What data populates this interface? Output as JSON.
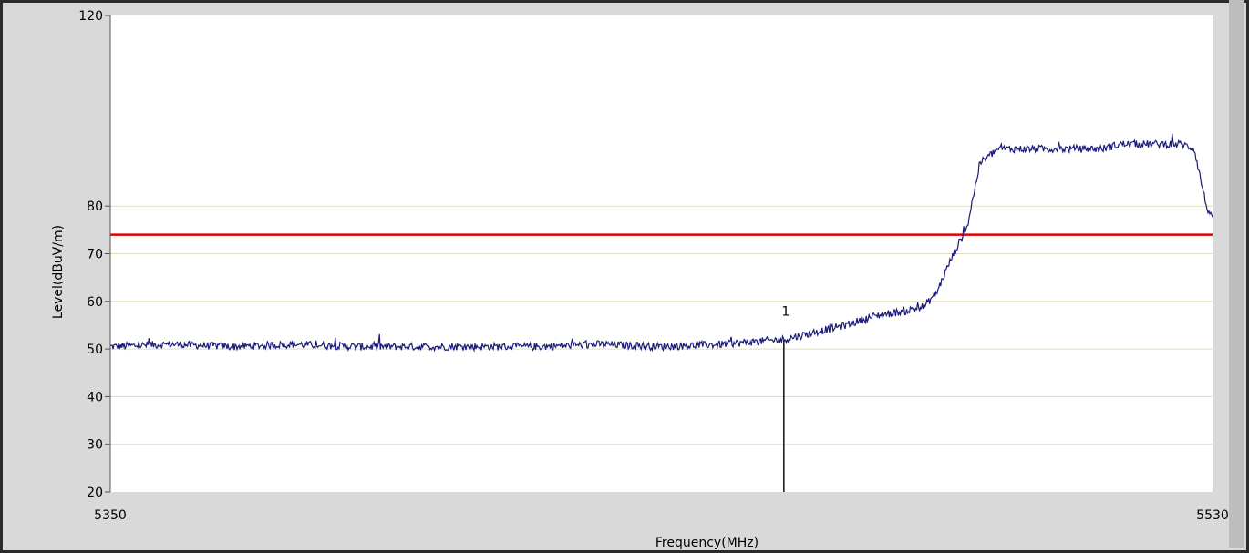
{
  "chart_data": {
    "type": "line",
    "title": "",
    "xlabel": "Frequency(MHz)",
    "ylabel": "Level(dBuV/m)",
    "xlim": [
      5350,
      5530
    ],
    "ylim": [
      20,
      120
    ],
    "x_ticks": [
      "5350",
      "5530"
    ],
    "y_ticks": [
      "20",
      "30",
      "40",
      "50",
      "60",
      "70",
      "80",
      "120"
    ],
    "grid": true,
    "limit_line": {
      "value": 74,
      "color": "#e00000"
    },
    "marker": {
      "label": "1",
      "x": 5460,
      "y": 52
    },
    "series": [
      {
        "color": "#1a1a7a",
        "x": [
          5350,
          5360,
          5370,
          5380,
          5390,
          5400,
          5410,
          5420,
          5430,
          5440,
          5450,
          5455,
          5460,
          5465,
          5470,
          5475,
          5480,
          5483,
          5485,
          5487,
          5490,
          5492,
          5495,
          5500,
          5510,
          5512,
          5515,
          5520,
          5525,
          5527,
          5529,
          5530
        ],
        "y": [
          50.5,
          51,
          50.5,
          51,
          50.5,
          50.5,
          50.5,
          50.5,
          51,
          50.5,
          51,
          51.5,
          52,
          53.5,
          55,
          57,
          58,
          59,
          62,
          68,
          76,
          89,
          92,
          92,
          92,
          92,
          93,
          93,
          93,
          92,
          80,
          77
        ]
      }
    ]
  }
}
